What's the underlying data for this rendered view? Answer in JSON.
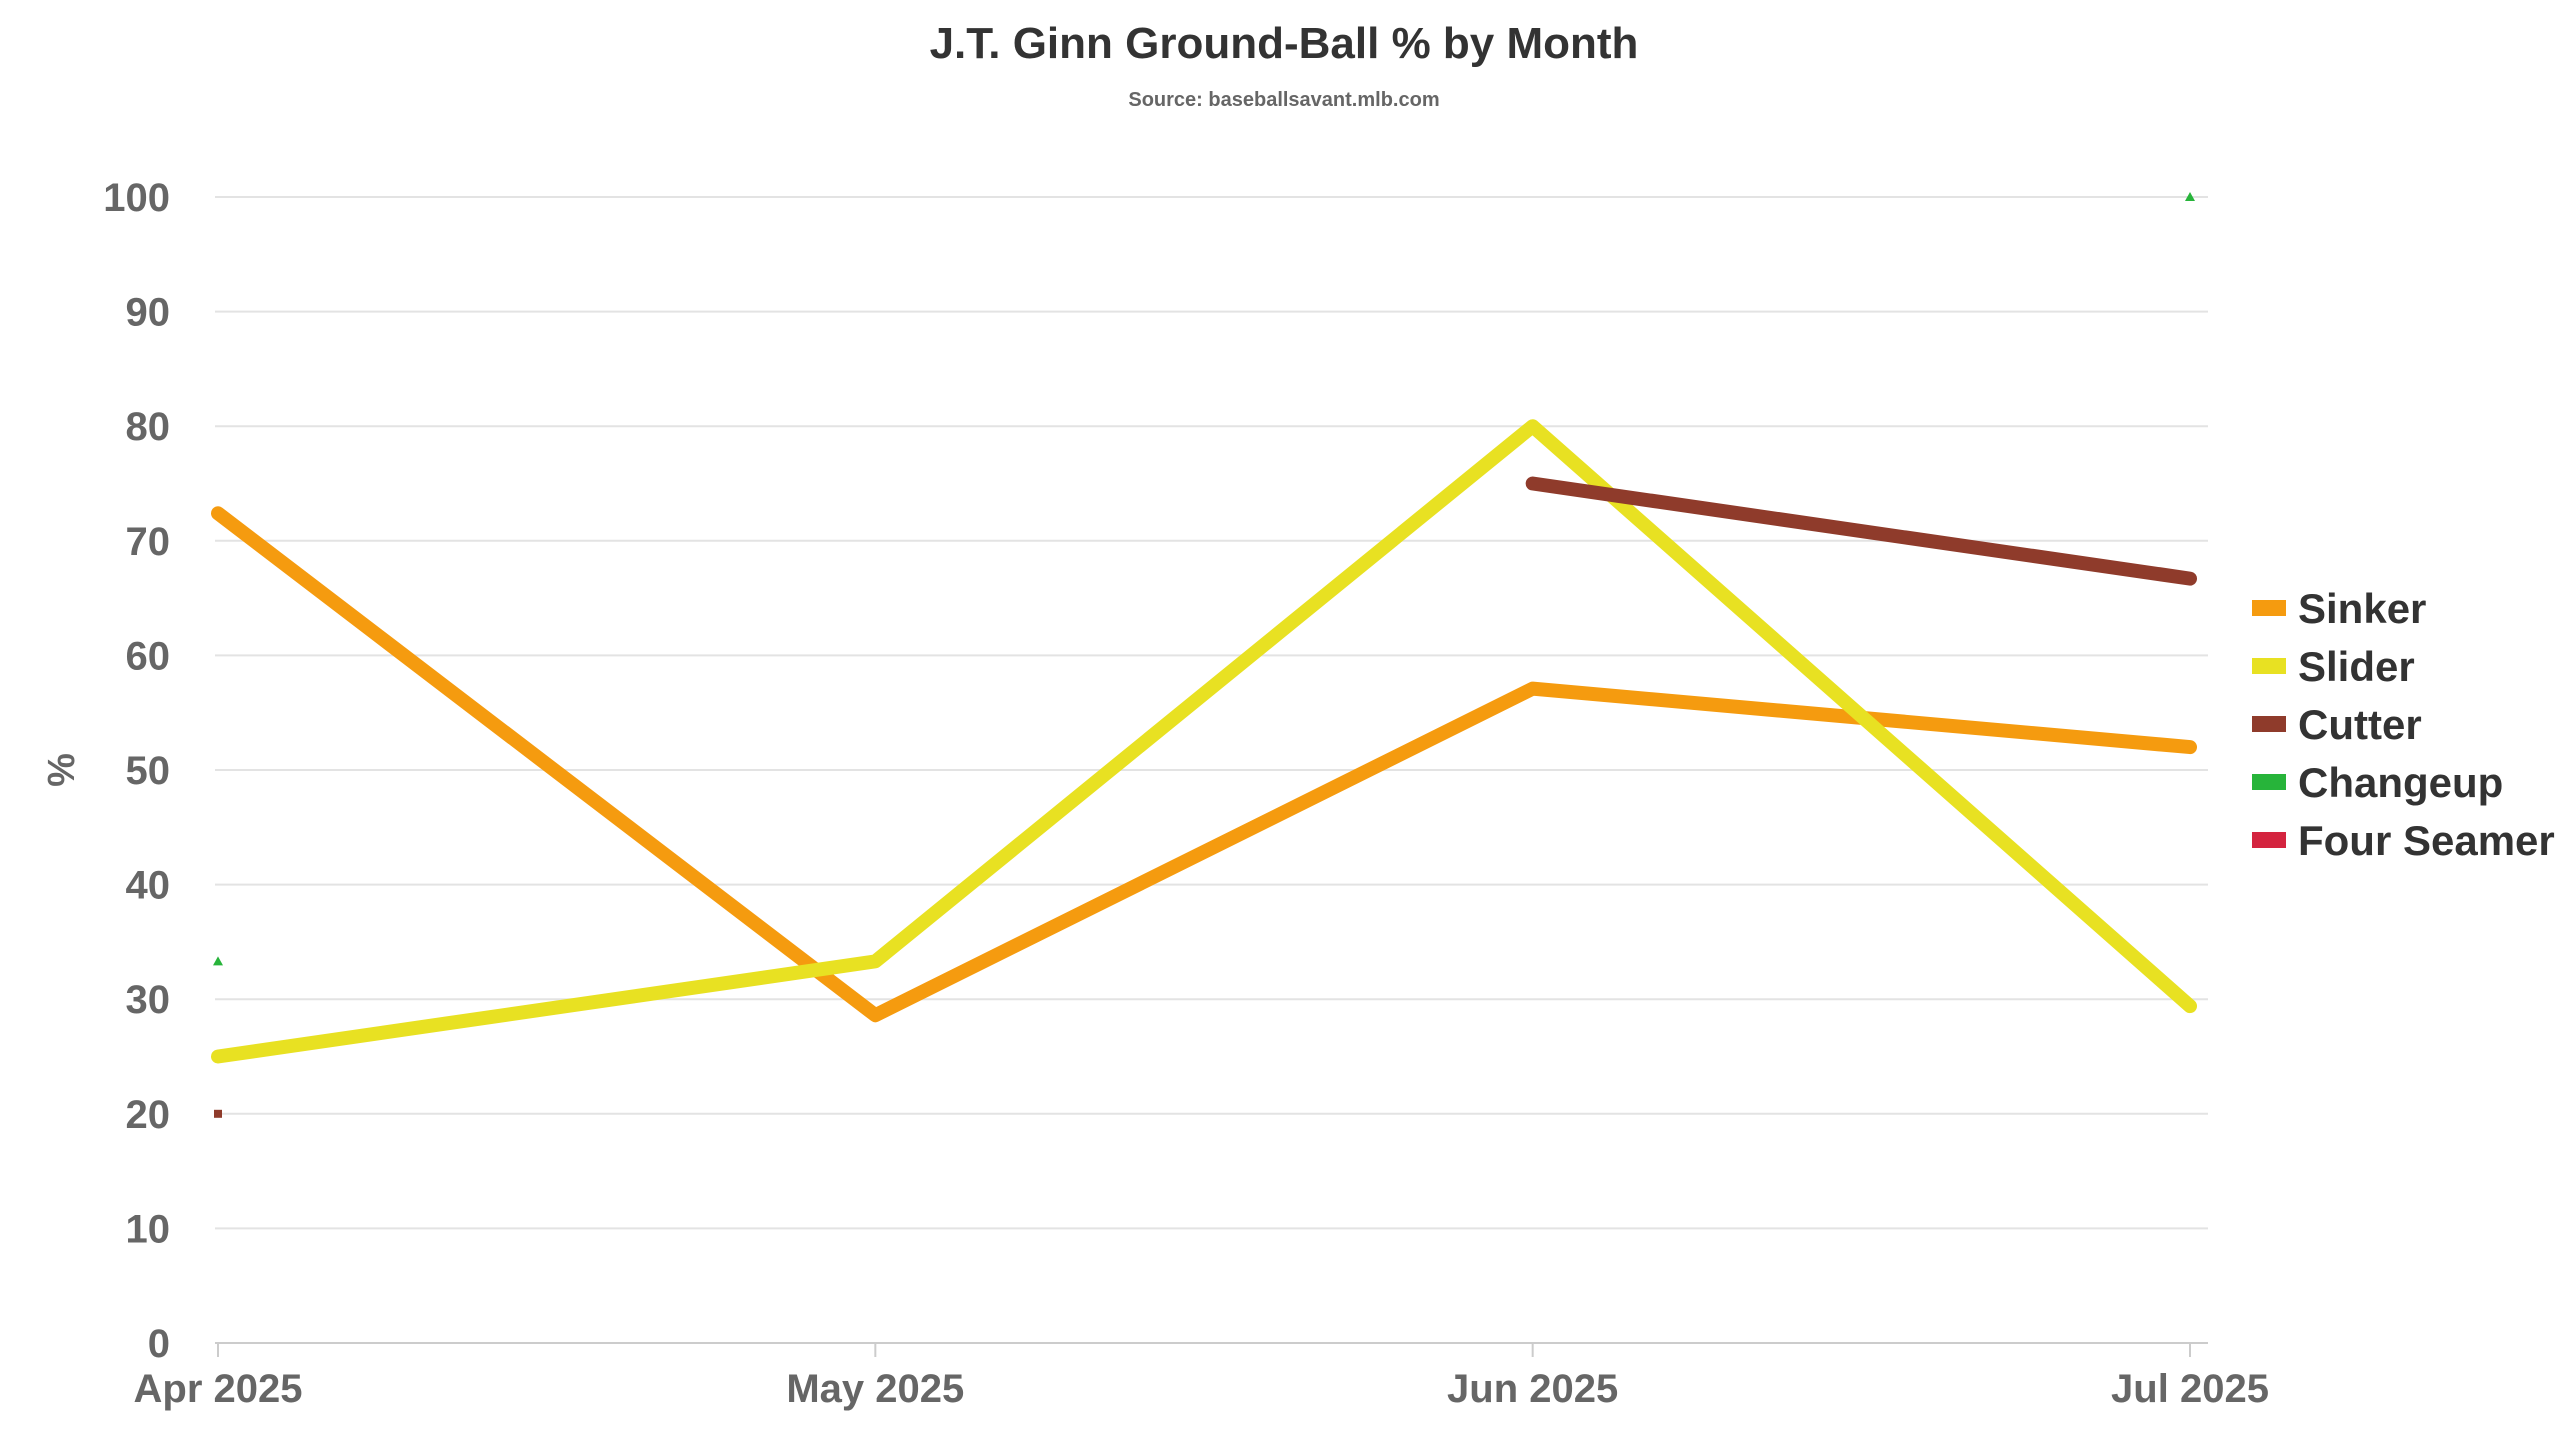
{
  "chart_data": {
    "type": "line",
    "title": "J.T. Ginn Ground-Ball % by Month",
    "subtitle": "Source: baseballsavant.mlb.com",
    "xlabel": "",
    "ylabel": "%",
    "categories": [
      "Apr 2025",
      "May 2025",
      "Jun 2025",
      "Jul 2025"
    ],
    "ylim": [
      0,
      100
    ],
    "yticks": [
      "0",
      "10",
      "20",
      "30",
      "40",
      "50",
      "60",
      "70",
      "80",
      "90",
      "100"
    ],
    "grid": true,
    "legend_position": "right",
    "series": [
      {
        "name": "Sinker",
        "color": "#f59b0f",
        "values": [
          72.4,
          28.6,
          57.1,
          52.0
        ]
      },
      {
        "name": "Slider",
        "color": "#e8e122",
        "values": [
          25.0,
          33.3,
          80.0,
          29.4
        ]
      },
      {
        "name": "Cutter",
        "color": "#8f3b2b",
        "values": [
          20.0,
          null,
          75.0,
          66.7
        ]
      },
      {
        "name": "Changeup",
        "color": "#27b43a",
        "values": [
          33.3,
          null,
          null,
          100.0
        ]
      },
      {
        "name": "Four Seamer",
        "color": "#d4243f",
        "values": [
          null,
          null,
          null,
          null
        ]
      }
    ]
  }
}
